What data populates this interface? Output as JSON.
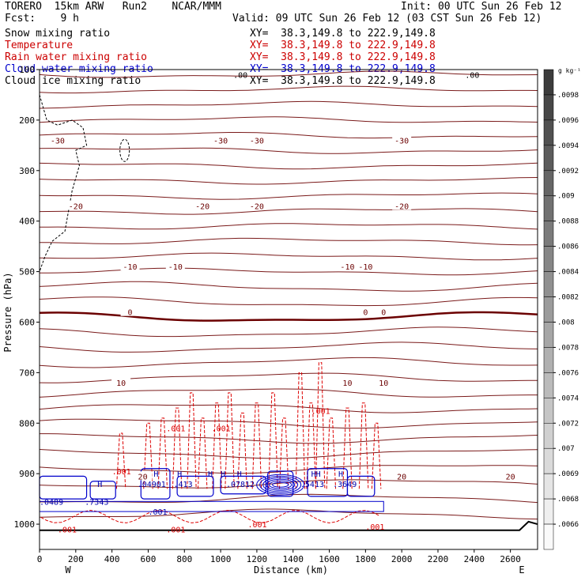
{
  "header": {
    "line1_left": "TORERO  15km ARW   Run2    NCAR/MMM",
    "line1_right": "Init: 00 UTC Sun 26 Feb 12",
    "line2_left": "Fcst:    9 h",
    "line2_right": "Valid: 09 UTC Sun 26 Feb 12 (03 CST Sun 26 Feb 12)"
  },
  "fields": [
    {
      "label": "Snow mixing ratio",
      "xy": "XY=  38.3,149.8 to 222.9,149.8",
      "color": "#000000"
    },
    {
      "label": "Temperature",
      "xy": "XY=  38.3,149.8 to 222.9,149.8",
      "color": "#cc0000"
    },
    {
      "label": "Rain water mixing ratio",
      "xy": "XY=  38.3,149.8 to 222.9,149.8",
      "color": "#cc0000"
    },
    {
      "label": "Cloud water mixing ratio",
      "xy": "XY=  38.3,149.8 to 222.9,149.8",
      "color": "#0000cc"
    },
    {
      "label": "Cloud ice mixing ratio",
      "xy": "XY=  38.3,149.8 to 222.9,149.8",
      "color": "#000000"
    }
  ],
  "colorbar": {
    "unit": "g kg⁻¹",
    "ticks": [
      ".0098",
      ".0096",
      ".0094",
      ".0092",
      ".009",
      ".0088",
      ".0086",
      ".0084",
      ".0082",
      ".008",
      ".0078",
      ".0076",
      ".0074",
      ".0072",
      ".007",
      ".0069",
      ".0068",
      ".0066"
    ]
  },
  "chart_data": {
    "type": "cross-section contour",
    "xlabel": "Distance (km)",
    "ylabel": "Pressure (hPa)",
    "xlim": [
      0,
      2750
    ],
    "ylim": [
      100,
      1050
    ],
    "x_ticks": [
      "0",
      "200",
      "400",
      "600",
      "800",
      "1000",
      "1200",
      "1400",
      "1600",
      "1800",
      "2000",
      "2200",
      "2400",
      "2600"
    ],
    "y_ticks": [
      {
        "label": "100",
        "p": 100
      },
      {
        "label": "200",
        "p": 200
      },
      {
        "label": "300",
        "p": 300
      },
      {
        "label": "400",
        "p": 400
      },
      {
        "label": "500",
        "p": 500
      },
      {
        "label": "600",
        "p": 600
      },
      {
        "label": "700",
        "p": 700
      },
      {
        "label": "800",
        "p": 800
      },
      {
        "label": "900",
        "p": 900
      },
      {
        "label": "1000",
        "p": 1000
      }
    ],
    "west_label": "W",
    "east_label": "E",
    "temperature_contours": [
      {
        "label": "-30",
        "p": 240,
        "labels_at": [
          100,
          1000,
          1200,
          2000
        ]
      },
      {
        "label": "-20",
        "p": 370,
        "labels_at": [
          200,
          900,
          1200,
          2000
        ]
      },
      {
        "label": "-10",
        "p": 490,
        "labels_at": [
          500,
          750,
          1700,
          1800
        ]
      },
      {
        "label": "0",
        "p": 580,
        "labels_at": [
          500,
          1800,
          1900
        ]
      },
      {
        "label": "10",
        "p": 720,
        "labels_at": [
          450,
          1700,
          1900
        ]
      },
      {
        "label": "20",
        "p": 905,
        "labels_at": [
          570,
          2000,
          2600
        ]
      }
    ],
    "rain_labels": [
      {
        "text": ".001",
        "x": 1500,
        "p": 775
      },
      {
        "text": ".001",
        "x": 700,
        "p": 810
      },
      {
        "text": ".001",
        "x": 950,
        "p": 810
      },
      {
        "text": ".001",
        "x": 400,
        "p": 895
      },
      {
        "text": ".001",
        "x": 700,
        "p": 1010
      },
      {
        "text": ".001",
        "x": 1150,
        "p": 1000
      },
      {
        "text": ".001",
        "x": 1800,
        "p": 1005
      },
      {
        "text": ".001",
        "x": 100,
        "p": 1010
      }
    ],
    "cloud_labels": [
      {
        "text": ".0489",
        "x": 0,
        "p": 955
      },
      {
        "text": ".7343",
        "x": 250,
        "p": 955
      },
      {
        "text": ".04901",
        "x": 540,
        "p": 920
      },
      {
        "text": ".413",
        "x": 740,
        "p": 920
      },
      {
        "text": ".07812",
        "x": 1030,
        "p": 920
      },
      {
        "text": ".5413",
        "x": 1440,
        "p": 920
      },
      {
        "text": ".3649",
        "x": 1620,
        "p": 920
      },
      {
        "text": ".001",
        "x": 600,
        "p": 975
      }
    ],
    "h_markers": [
      {
        "text": "H",
        "x": 320,
        "p": 920
      },
      {
        "text": "H",
        "x": 630,
        "p": 900
      },
      {
        "text": "H",
        "x": 760,
        "p": 900
      },
      {
        "text": "H",
        "x": 930,
        "p": 900
      },
      {
        "text": "H",
        "x": 1000,
        "p": 900
      },
      {
        "text": "H",
        "x": 1090,
        "p": 900
      },
      {
        "text": "HH",
        "x": 1500,
        "p": 900
      },
      {
        "text": "H",
        "x": 1650,
        "p": 900
      }
    ],
    "top_labels": [
      {
        "text": ".00",
        "x": 2350,
        "p": 110
      },
      {
        "text": ".00",
        "x": 1070,
        "p": 110
      }
    ]
  }
}
